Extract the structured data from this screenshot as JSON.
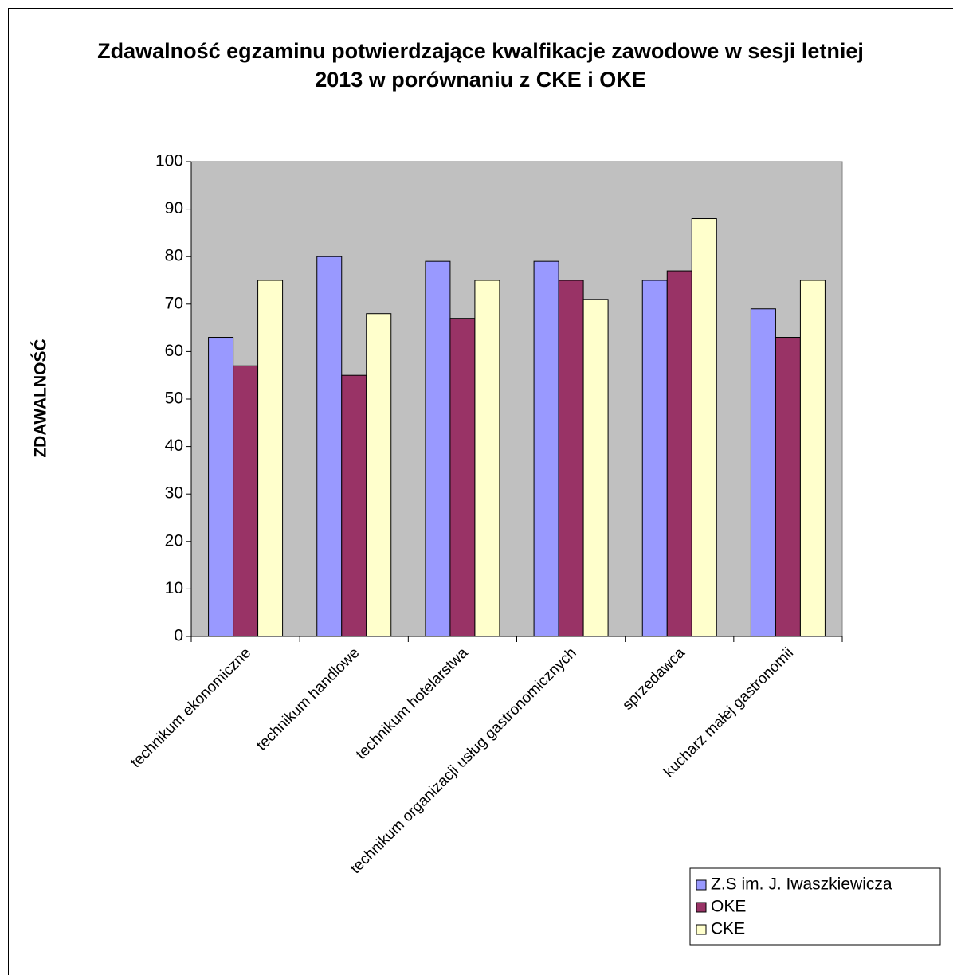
{
  "chart_data": {
    "type": "bar",
    "title": "Zdawalność egzaminu potwierdzające kwalfikacje zawodowe w sesji letniej 2013 w porównaniu z CKE i OKE",
    "ylabel": "ZDAWALNOŚĆ",
    "categories": [
      "technikum ekonomiczne",
      "technikum handlowe",
      "technikum hotelarstwa",
      "technikum organizacji usług gastronomicznych",
      "sprzedawca",
      "kucharz małej gastronomii"
    ],
    "series": [
      {
        "name": "Z.S im. J. Iwaszkiewicza",
        "color": "#9999ff",
        "values": [
          63,
          80,
          79,
          79,
          75,
          69
        ]
      },
      {
        "name": "OKE",
        "color": "#993366",
        "values": [
          57,
          55,
          67,
          75,
          77,
          63
        ]
      },
      {
        "name": "CKE",
        "color": "#ffffcc",
        "values": [
          75,
          68,
          75,
          71,
          88,
          75
        ]
      }
    ],
    "ylim": [
      0,
      100
    ],
    "yticks": [
      0,
      10,
      20,
      30,
      40,
      50,
      60,
      70,
      80,
      90,
      100
    ],
    "grid": false,
    "legend": "lower right",
    "plot_background": "#c0c0c0"
  }
}
